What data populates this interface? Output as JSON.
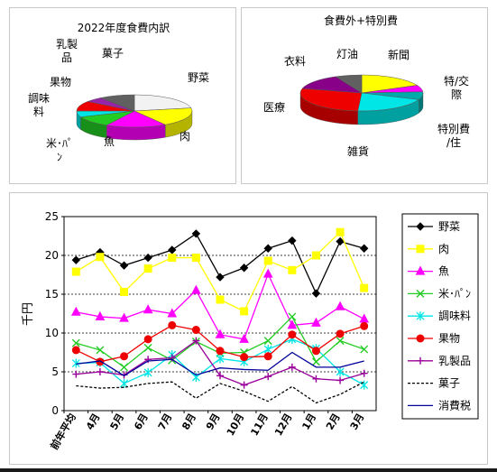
{
  "pie_left": {
    "title": "2022年度食費内訳",
    "labels": [
      {
        "key": "nyuseihin",
        "lines": [
          "乳製",
          "品"
        ]
      },
      {
        "key": "kashi",
        "lines": [
          "菓子"
        ]
      },
      {
        "key": "kudamono",
        "lines": [
          "果物"
        ]
      },
      {
        "key": "choumiryou",
        "lines": [
          "調味",
          "料"
        ]
      },
      {
        "key": "komepan",
        "lines": [
          "米･ﾊﾟ",
          "ﾝ"
        ]
      },
      {
        "key": "sakana",
        "lines": [
          "魚"
        ]
      },
      {
        "key": "yasai",
        "lines": [
          "野菜"
        ]
      },
      {
        "key": "niku",
        "lines": [
          "肉"
        ]
      }
    ]
  },
  "pie_right": {
    "title": "食費外+特別費",
    "labels": [
      {
        "key": "irui",
        "lines": [
          "衣料"
        ]
      },
      {
        "key": "touyu",
        "lines": [
          "灯油"
        ]
      },
      {
        "key": "shinbun",
        "lines": [
          "新聞"
        ]
      },
      {
        "key": "tokukou",
        "lines": [
          "特/交",
          "際"
        ]
      },
      {
        "key": "iryou",
        "lines": [
          "医療"
        ]
      },
      {
        "key": "tokujuu",
        "lines": [
          "特別費",
          "/住"
        ]
      },
      {
        "key": "zakka",
        "lines": [
          "雑貨"
        ]
      }
    ]
  },
  "chart_data": [
    {
      "type": "pie",
      "title": "2022年度食費内訳",
      "categories": [
        "野菜",
        "肉",
        "魚",
        "米･ﾊﾟﾝ",
        "調味料",
        "果物",
        "乳製品",
        "菓子"
      ],
      "values": [
        22,
        19,
        17,
        11,
        6,
        10,
        5,
        10
      ],
      "colors": [
        "#f2f2f2",
        "#ffff00",
        "#ff00ff",
        "#22cc22",
        "#00e5e5",
        "#ee0000",
        "#9922aa",
        "#606060"
      ]
    },
    {
      "type": "pie",
      "title": "食費外+特別費",
      "categories": [
        "新聞",
        "特/交際",
        "特別費/住",
        "雑貨",
        "医療",
        "衣料",
        "灯油"
      ],
      "values": [
        18,
        6,
        7,
        20,
        28,
        14,
        7
      ],
      "colors": [
        "#ffff00",
        "#ff00ff",
        "#00aaaa",
        "#00e5e5",
        "#ee0000",
        "#880088",
        "#606060"
      ]
    },
    {
      "type": "line",
      "title": "",
      "ylabel": "千円",
      "xlabel": "",
      "ylim": [
        0,
        25
      ],
      "yticks": [
        0,
        5,
        10,
        15,
        20,
        25
      ],
      "grid": true,
      "legend_position": "right",
      "categories": [
        "前年平均",
        "4月",
        "5月",
        "6月",
        "7月",
        "8月",
        "9月",
        "10月",
        "11月",
        "12月",
        "1月",
        "2月",
        "3月"
      ],
      "series": [
        {
          "name": "野菜",
          "color": "#000000",
          "marker": "diamond",
          "dash": "",
          "values": [
            19.4,
            20.4,
            18.7,
            19.7,
            20.7,
            22.8,
            17.2,
            18.4,
            20.9,
            21.9,
            15.1,
            21.8,
            20.9
          ]
        },
        {
          "name": "肉",
          "color": "#ffff00",
          "marker": "square",
          "dash": "",
          "values": [
            17.9,
            19.8,
            15.3,
            18.3,
            19.7,
            19.7,
            14.3,
            12.8,
            19.3,
            18.1,
            20.0,
            23.0,
            15.8
          ]
        },
        {
          "name": "魚",
          "color": "#ff00ff",
          "marker": "triangle",
          "dash": "",
          "values": [
            12.7,
            12.1,
            11.9,
            13.0,
            12.5,
            15.5,
            9.8,
            9.2,
            17.6,
            11.0,
            11.3,
            13.4,
            11.8
          ]
        },
        {
          "name": "米･ﾊﾟﾝ",
          "color": "#22cc22",
          "marker": "x",
          "dash": "",
          "values": [
            8.7,
            7.8,
            5.6,
            8.1,
            6.5,
            8.9,
            7.4,
            7.5,
            9.0,
            12.1,
            6.3,
            9.0,
            7.9
          ]
        },
        {
          "name": "調味料",
          "color": "#00e5e5",
          "marker": "asterisk",
          "dash": "",
          "values": [
            6.1,
            6.2,
            3.5,
            4.9,
            7.2,
            4.3,
            6.7,
            6.3,
            7.9,
            9.2,
            8.0,
            5.0,
            3.3
          ]
        },
        {
          "name": "果物",
          "color": "#ee0000",
          "marker": "circle",
          "dash": "",
          "values": [
            7.8,
            6.3,
            7.0,
            9.2,
            11.0,
            10.4,
            7.7,
            6.9,
            7.0,
            9.8,
            7.7,
            9.9,
            10.9
          ]
        },
        {
          "name": "乳製品",
          "color": "#990099",
          "marker": "plus",
          "dash": "",
          "values": [
            4.7,
            5.0,
            4.6,
            6.6,
            6.8,
            9.0,
            4.5,
            3.3,
            4.4,
            5.6,
            4.1,
            3.9,
            4.8
          ]
        },
        {
          "name": "菓子",
          "color": "#000000",
          "marker": "none",
          "dash": "3,2",
          "values": [
            3.2,
            2.9,
            3.0,
            3.5,
            3.7,
            1.6,
            3.5,
            2.5,
            1.2,
            3.1,
            1.0,
            2.1,
            3.7
          ]
        },
        {
          "name": "消費税",
          "color": "#000099",
          "marker": "none",
          "dash": "",
          "values": [
            6.0,
            6.4,
            4.5,
            6.4,
            6.6,
            4.6,
            5.5,
            5.3,
            5.2,
            7.5,
            5.6,
            5.6,
            6.4
          ]
        }
      ]
    }
  ]
}
